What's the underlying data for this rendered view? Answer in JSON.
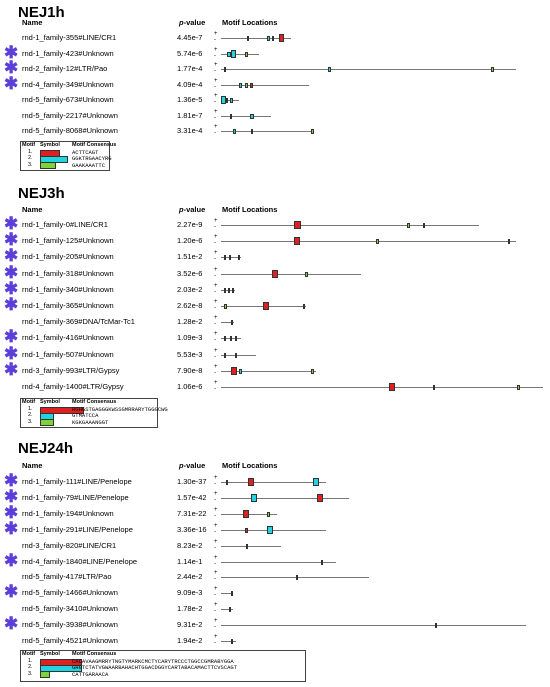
{
  "headers": {
    "name": "Name",
    "pvalue": "p-value",
    "motif": "Motif Locations"
  },
  "legend_headers": {
    "motif": "Motif",
    "symbol": "Symbol",
    "consensus": "Motif Consensus"
  },
  "colors": {
    "motif1": "#e02020",
    "motif2": "#22d3e0",
    "motif3": "#7ed33a",
    "star": "#5b3fd6",
    "line": "#777777"
  },
  "star_glyph": "✱",
  "sections": [
    {
      "title": "NEJ1h",
      "rows": [
        {
          "star": false,
          "name": "rnd-1_family-355#LINE/CR1",
          "p": "4.45e-7"
        },
        {
          "star": true,
          "name": "rnd-1_family-423#Unknown",
          "p": "5.74e-6"
        },
        {
          "star": true,
          "name": "rnd-2_family-12#LTR/Pao",
          "p": "1.77e-4"
        },
        {
          "star": true,
          "name": "rnd-4_family-349#Unknown",
          "p": "4.09e-4"
        },
        {
          "star": false,
          "name": "rnd-5_family-673#Unknown",
          "p": "1.36e-5"
        },
        {
          "star": false,
          "name": "rnd-5_family-2217#Unknown",
          "p": "1.81e-7"
        },
        {
          "star": false,
          "name": "rnd-5_family-8068#Unknown",
          "p": "3.31e-4"
        }
      ],
      "legend": [
        {
          "num": "1.",
          "consensus": "ACTTCAGT"
        },
        {
          "num": "2.",
          "consensus": "GGKTRGAACYRG"
        },
        {
          "num": "3.",
          "consensus": "GAAKAAATTC"
        }
      ]
    },
    {
      "title": "NEJ3h",
      "rows": [
        {
          "star": true,
          "name": "rnd-1_family-0#LINE/CR1",
          "p": "2.27e-9"
        },
        {
          "star": true,
          "name": "rnd-1_family-125#Unknown",
          "p": "1.20e-6"
        },
        {
          "star": true,
          "name": "rnd-1_family-205#Unknown",
          "p": "1.51e-2"
        },
        {
          "star": true,
          "name": "rnd-1_family-318#Unknown",
          "p": "3.52e-6"
        },
        {
          "star": true,
          "name": "rnd-1_family-340#Unknown",
          "p": "2.03e-2"
        },
        {
          "star": true,
          "name": "rnd-1_family-365#Unknown",
          "p": "2.62e-8"
        },
        {
          "star": false,
          "name": "rnd-1_family-369#DNA/TcMar-Tc1",
          "p": "1.28e-2"
        },
        {
          "star": true,
          "name": "rnd-1_family-416#Unknown",
          "p": "1.09e-3"
        },
        {
          "star": true,
          "name": "rnd-1_family-507#Unknown",
          "p": "5.53e-3"
        },
        {
          "star": true,
          "name": "rnd-3_family-993#LTR/Gypsy",
          "p": "7.90e-8"
        },
        {
          "star": false,
          "name": "rnd-4_family-1400#LTR/Gypsy",
          "p": "1.06e-6"
        }
      ],
      "legend": [
        {
          "num": "1.",
          "consensus": "RGHGSTGAGGGKWSSGMRRARYTGGGCWG"
        },
        {
          "num": "2.",
          "consensus": "GTMATCCA"
        },
        {
          "num": "3.",
          "consensus": "KGKGAAANGGT"
        }
      ]
    },
    {
      "title": "NEJ24h",
      "rows": [
        {
          "star": true,
          "name": "rnd-1_family-111#LINE/Penelope",
          "p": "1.30e-37"
        },
        {
          "star": true,
          "name": "rnd-1_family-79#LINE/Penelope",
          "p": "1.57e-42"
        },
        {
          "star": true,
          "name": "rnd-1_family-194#Unknown",
          "p": "7.31e-22"
        },
        {
          "star": true,
          "name": "rnd-1_family-291#LINE/Penelope",
          "p": "3.36e-16"
        },
        {
          "star": false,
          "name": "rnd-3_family-820#LINE/CR1",
          "p": "8.23e-2"
        },
        {
          "star": true,
          "name": "rnd-4_family-1840#LINE/Penelope",
          "p": "1.14e-1"
        },
        {
          "star": false,
          "name": "rnd-5_family-417#LTR/Pao",
          "p": "2.44e-2"
        },
        {
          "star": true,
          "name": "rnd-5_family-1466#Unknown",
          "p": "9.09e-3"
        },
        {
          "star": false,
          "name": "rnd-5_family-3410#Unknown",
          "p": "1.78e-2"
        },
        {
          "star": true,
          "name": "rnd-5_family-3938#Unknown",
          "p": "9.31e-2"
        },
        {
          "star": false,
          "name": "rnd-5_family-4521#Unknown",
          "p": "1.94e-2"
        }
      ],
      "legend": [
        {
          "num": "1.",
          "consensus": "CACAVAAGMRRYTNGTYMARKCMCTYCARYTRCCCTGGCCGMRABYGGA"
        },
        {
          "num": "2.",
          "consensus": "GHGTCTATVGWAARBAHACHTGGACDGGYCARTABACAMACTTCVSCAGT"
        },
        {
          "num": "3.",
          "consensus": "CATTGARAACA"
        }
      ]
    }
  ]
}
